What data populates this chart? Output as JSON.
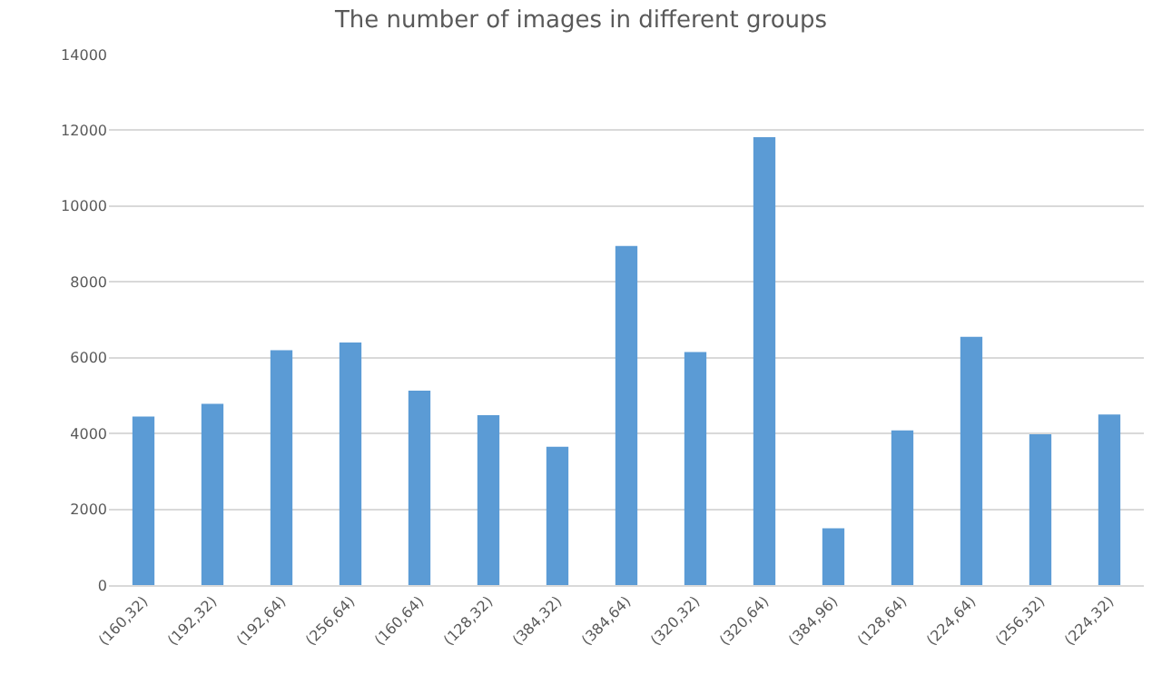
{
  "chart_data": {
    "type": "bar",
    "title": "The number of images in different groups",
    "categories": [
      "(160,32)",
      "(192,32)",
      "(192,64)",
      "(256,64)",
      "(160,64)",
      "(128,32)",
      "(384,32)",
      "(384,64)",
      "(320,32)",
      "(320,64)",
      "(384,96)",
      "(128,64)",
      "(224,64)",
      "(256,32)",
      "(224,32)"
    ],
    "values": [
      4450,
      4780,
      6200,
      6400,
      5130,
      4480,
      3650,
      8950,
      6150,
      11820,
      1500,
      4080,
      6550,
      3980,
      4500
    ],
    "color": "#5b9bd5",
    "ylim": [
      0,
      14000
    ],
    "yticks": [
      0,
      2000,
      4000,
      6000,
      8000,
      10000,
      12000,
      14000
    ],
    "grid": "y"
  }
}
